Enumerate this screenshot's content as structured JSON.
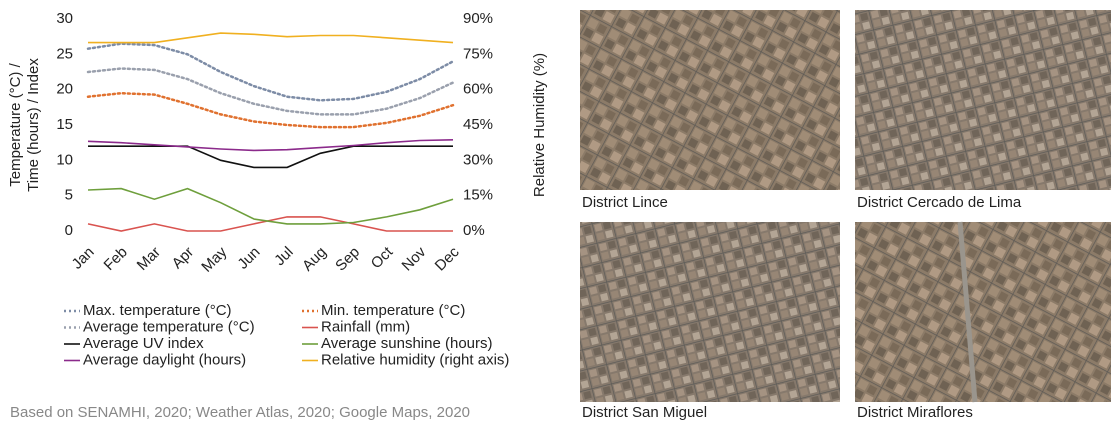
{
  "chart_data": {
    "type": "line",
    "categories": [
      "Jan",
      "Feb",
      "Mar",
      "Apr",
      "May",
      "Jun",
      "Jul",
      "Aug",
      "Sep",
      "Oct",
      "Nov",
      "Dec"
    ],
    "ylabel": [
      "Temperature (°C) /",
      "Time (hours) / Index"
    ],
    "y2label": "Relative Humidity (%)",
    "ylim": [
      0,
      30
    ],
    "yticks": [
      0,
      5,
      10,
      15,
      20,
      25,
      30
    ],
    "y2lim": [
      0,
      90
    ],
    "y2ticks": [
      {
        "value": 0,
        "label": "0%"
      },
      {
        "value": 15,
        "label": "15%"
      },
      {
        "value": 30,
        "label": "30%"
      },
      {
        "value": 45,
        "label": "45%"
      },
      {
        "value": 60,
        "label": "60%"
      },
      {
        "value": 75,
        "label": "75%"
      },
      {
        "value": 90,
        "label": "90%"
      }
    ],
    "grid": false,
    "series": [
      {
        "name": "Max. temperature (°C)",
        "color": "#7d8ca6",
        "dash": "dotted",
        "values": [
          25.8,
          26.5,
          26.3,
          25,
          22.5,
          20.5,
          19,
          18.5,
          18.7,
          19.7,
          21.5,
          24
        ]
      },
      {
        "name": "Min. temperature (°C)",
        "color": "#e0712f",
        "dash": "dotted",
        "values": [
          19,
          19.5,
          19.3,
          18,
          16.5,
          15.5,
          15,
          14.7,
          14.7,
          15.3,
          16.3,
          17.8
        ]
      },
      {
        "name": "Average temperature (°C)",
        "color": "#9aa0ad",
        "dash": "dotted",
        "values": [
          22.5,
          23,
          22.8,
          21.5,
          19.5,
          18,
          17,
          16.5,
          16.5,
          17.3,
          18.8,
          21
        ]
      },
      {
        "name": "Rainfall (mm)",
        "color": "#d9534f",
        "dash": "solid",
        "values": [
          1,
          0,
          1,
          0,
          0,
          1,
          2,
          2,
          1,
          0,
          0,
          0
        ]
      },
      {
        "name": "Average UV index",
        "color": "#111111",
        "dash": "solid",
        "values": [
          12,
          12,
          12,
          12,
          10,
          9,
          9,
          11,
          12,
          12,
          12,
          12
        ]
      },
      {
        "name": "Average sunshine (hours)",
        "color": "#6e9f3c",
        "dash": "solid",
        "values": [
          5.8,
          6,
          4.5,
          6,
          4,
          1.7,
          1,
          1,
          1.2,
          2,
          3,
          4.5
        ]
      },
      {
        "name": "Average daylight (hours)",
        "color": "#8b2a8b",
        "dash": "solid",
        "values": [
          12.7,
          12.5,
          12.2,
          11.9,
          11.6,
          11.4,
          11.5,
          11.8,
          12.1,
          12.5,
          12.8,
          12.9
        ]
      },
      {
        "name": "Relative humidity (right axis)",
        "color": "#f0b020",
        "dash": "solid",
        "axis": "y2",
        "values": [
          80,
          80,
          80,
          82,
          84,
          83.5,
          82.5,
          83,
          83,
          82,
          81,
          80
        ]
      }
    ]
  },
  "source": "Based on SENAMHI, 2020; Weather Atlas, 2020; Google Maps, 2020",
  "images": [
    {
      "caption": "District Lince"
    },
    {
      "caption": "District Cercado de Lima"
    },
    {
      "caption": "District San Miguel"
    },
    {
      "caption": "District Miraflores"
    }
  ]
}
